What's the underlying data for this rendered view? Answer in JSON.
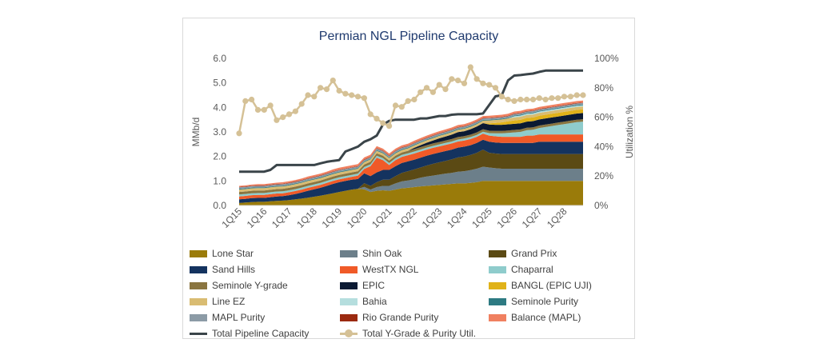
{
  "chart_data": {
    "type": "area",
    "title": "Permian NGL Pipeline Capacity",
    "ylabel": "MMb/d",
    "y2label": "Utilization %",
    "ylim": [
      0,
      6
    ],
    "y2lim": [
      0,
      1
    ],
    "yticks": [
      "0.0",
      "1.0",
      "2.0",
      "3.0",
      "4.0",
      "5.0",
      "6.0"
    ],
    "y2ticks": [
      "0%",
      "20%",
      "40%",
      "60%",
      "80%",
      "100%"
    ],
    "x_labels": [
      "1Q15",
      "1Q16",
      "1Q17",
      "1Q18",
      "1Q19",
      "1Q20",
      "1Q21",
      "1Q22",
      "1Q23",
      "1Q24",
      "1Q25",
      "1Q26",
      "1Q27",
      "1Q28"
    ],
    "x_quarters": [
      "1Q15",
      "2Q15",
      "3Q15",
      "4Q15",
      "1Q16",
      "2Q16",
      "3Q16",
      "4Q16",
      "1Q17",
      "2Q17",
      "3Q17",
      "4Q17",
      "1Q18",
      "2Q18",
      "3Q18",
      "4Q18",
      "1Q19",
      "2Q19",
      "3Q19",
      "4Q19",
      "1Q20",
      "2Q20",
      "3Q20",
      "4Q20",
      "1Q21",
      "2Q21",
      "3Q21",
      "4Q21",
      "1Q22",
      "2Q22",
      "3Q22",
      "4Q22",
      "1Q23",
      "2Q23",
      "3Q23",
      "4Q23",
      "1Q24",
      "2Q24",
      "3Q24",
      "4Q24",
      "1Q25",
      "2Q25",
      "3Q25",
      "4Q25",
      "1Q26",
      "2Q26",
      "3Q26",
      "4Q26",
      "1Q27",
      "2Q27",
      "3Q27",
      "4Q27",
      "1Q28",
      "2Q28",
      "3Q28",
      "4Q28"
    ],
    "stack_series": [
      {
        "name": "Lone Star",
        "color": "#9a7b0a",
        "values": [
          0.1,
          0.12,
          0.14,
          0.15,
          0.15,
          0.17,
          0.19,
          0.2,
          0.22,
          0.25,
          0.28,
          0.32,
          0.36,
          0.4,
          0.45,
          0.5,
          0.55,
          0.6,
          0.65,
          0.68,
          0.66,
          0.55,
          0.6,
          0.62,
          0.6,
          0.65,
          0.7,
          0.72,
          0.75,
          0.78,
          0.8,
          0.82,
          0.84,
          0.86,
          0.88,
          0.9,
          0.9,
          0.92,
          0.95,
          1.0,
          1.0,
          1.0,
          1.0,
          1.0,
          1.0,
          1.0,
          1.0,
          1.0,
          1.0,
          1.0,
          1.0,
          1.0,
          1.0,
          1.0,
          1.0,
          1.0
        ]
      },
      {
        "name": "Shin Oak",
        "color": "#6c7f8a",
        "values": [
          0,
          0,
          0,
          0,
          0,
          0,
          0,
          0,
          0,
          0,
          0,
          0,
          0,
          0,
          0,
          0,
          0,
          0,
          0,
          0,
          0.1,
          0.1,
          0.15,
          0.18,
          0.2,
          0.25,
          0.28,
          0.3,
          0.32,
          0.35,
          0.38,
          0.4,
          0.42,
          0.44,
          0.45,
          0.48,
          0.5,
          0.52,
          0.55,
          0.58,
          0.55,
          0.52,
          0.5,
          0.5,
          0.5,
          0.5,
          0.5,
          0.5,
          0.5,
          0.5,
          0.5,
          0.5,
          0.5,
          0.5,
          0.5,
          0.5
        ]
      },
      {
        "name": "Grand Prix",
        "color": "#5b4a14",
        "values": [
          0,
          0,
          0,
          0,
          0,
          0,
          0,
          0,
          0,
          0,
          0,
          0,
          0,
          0,
          0,
          0,
          0,
          0,
          0,
          0,
          0.15,
          0.15,
          0.2,
          0.25,
          0.25,
          0.3,
          0.35,
          0.38,
          0.4,
          0.42,
          0.45,
          0.48,
          0.5,
          0.52,
          0.55,
          0.58,
          0.6,
          0.62,
          0.65,
          0.7,
          0.6,
          0.6,
          0.6,
          0.6,
          0.6,
          0.6,
          0.6,
          0.6,
          0.6,
          0.6,
          0.6,
          0.6,
          0.6,
          0.6,
          0.6,
          0.6
        ]
      },
      {
        "name": "Sand Hills",
        "color": "#14335f",
        "values": [
          0.15,
          0.15,
          0.16,
          0.16,
          0.16,
          0.17,
          0.18,
          0.18,
          0.2,
          0.22,
          0.25,
          0.28,
          0.3,
          0.32,
          0.35,
          0.38,
          0.4,
          0.4,
          0.4,
          0.4,
          0.4,
          0.4,
          0.4,
          0.4,
          0.4,
          0.4,
          0.4,
          0.4,
          0.4,
          0.4,
          0.4,
          0.4,
          0.4,
          0.4,
          0.4,
          0.4,
          0.4,
          0.4,
          0.4,
          0.4,
          0.45,
          0.45,
          0.45,
          0.45,
          0.45,
          0.45,
          0.45,
          0.45,
          0.5,
          0.5,
          0.5,
          0.5,
          0.5,
          0.5,
          0.5,
          0.5
        ]
      },
      {
        "name": "WestTX NGL",
        "color": "#f05a28",
        "values": [
          0.12,
          0.12,
          0.12,
          0.12,
          0.12,
          0.12,
          0.12,
          0.12,
          0.12,
          0.12,
          0.12,
          0.12,
          0.12,
          0.12,
          0.12,
          0.12,
          0.12,
          0.12,
          0.12,
          0.14,
          0.18,
          0.4,
          0.6,
          0.4,
          0.2,
          0.25,
          0.25,
          0.25,
          0.25,
          0.25,
          0.25,
          0.25,
          0.25,
          0.25,
          0.25,
          0.25,
          0.25,
          0.25,
          0.25,
          0.25,
          0.25,
          0.25,
          0.25,
          0.25,
          0.25,
          0.25,
          0.3,
          0.3,
          0.3,
          0.3,
          0.3,
          0.3,
          0.3,
          0.3,
          0.3,
          0.3
        ]
      },
      {
        "name": "Chaparral",
        "color": "#8fcccc",
        "values": [
          0.08,
          0.08,
          0.08,
          0.08,
          0.08,
          0.08,
          0.08,
          0.08,
          0.08,
          0.08,
          0.08,
          0.08,
          0.08,
          0.08,
          0.08,
          0.08,
          0.08,
          0.08,
          0.08,
          0.08,
          0.08,
          0.08,
          0.08,
          0.08,
          0.08,
          0.08,
          0.08,
          0.08,
          0.08,
          0.08,
          0.08,
          0.08,
          0.08,
          0.08,
          0.08,
          0.08,
          0.08,
          0.08,
          0.08,
          0.08,
          0.1,
          0.12,
          0.14,
          0.16,
          0.18,
          0.2,
          0.22,
          0.24,
          0.26,
          0.3,
          0.34,
          0.38,
          0.42,
          0.46,
          0.5,
          0.52
        ]
      },
      {
        "name": "Seminole Y-grade",
        "color": "#8a7540",
        "values": [
          0.1,
          0.1,
          0.1,
          0.1,
          0.1,
          0.1,
          0.1,
          0.1,
          0.1,
          0.1,
          0.1,
          0.1,
          0.1,
          0.1,
          0.1,
          0.1,
          0.1,
          0.1,
          0.1,
          0.1,
          0.1,
          0.1,
          0.1,
          0.1,
          0.1,
          0.1,
          0.1,
          0.1,
          0.1,
          0.1,
          0.1,
          0.1,
          0.1,
          0.1,
          0.1,
          0.1,
          0.1,
          0.1,
          0.1,
          0.1,
          0.1,
          0.1,
          0.1,
          0.1,
          0.1,
          0.1,
          0.1,
          0.1,
          0.1,
          0.1,
          0.1,
          0.1,
          0.1,
          0.1,
          0.1,
          0.1
        ]
      },
      {
        "name": "EPIC",
        "color": "#0b1a33",
        "values": [
          0,
          0,
          0,
          0,
          0,
          0,
          0,
          0,
          0,
          0,
          0,
          0,
          0,
          0,
          0,
          0,
          0,
          0,
          0,
          0,
          0,
          0,
          0,
          0,
          0,
          0,
          0,
          0,
          0.05,
          0.08,
          0.1,
          0.12,
          0.15,
          0.16,
          0.18,
          0.2,
          0.2,
          0.22,
          0.24,
          0.25,
          0.25,
          0.25,
          0.25,
          0.25,
          0.25,
          0.25,
          0.25,
          0.25,
          0.25,
          0.25,
          0.25,
          0.25,
          0.25,
          0.25,
          0.25,
          0.25
        ]
      },
      {
        "name": "BANGL (EPIC UJI)",
        "color": "#e0b219",
        "values": [
          0,
          0,
          0,
          0,
          0,
          0,
          0,
          0,
          0,
          0,
          0,
          0,
          0,
          0,
          0,
          0,
          0,
          0,
          0,
          0,
          0,
          0,
          0,
          0,
          0,
          0,
          0,
          0,
          0,
          0,
          0,
          0,
          0,
          0,
          0,
          0,
          0,
          0,
          0,
          0,
          0.05,
          0.08,
          0.1,
          0.12,
          0.14,
          0.15,
          0.15,
          0.15,
          0.15,
          0.15,
          0.15,
          0.15,
          0.15,
          0.15,
          0.15,
          0.15
        ]
      },
      {
        "name": "Line EZ",
        "color": "#d9bc72",
        "values": [
          0.1,
          0.1,
          0.1,
          0.1,
          0.1,
          0.1,
          0.1,
          0.1,
          0.1,
          0.1,
          0.1,
          0.1,
          0.1,
          0.1,
          0.1,
          0.1,
          0.1,
          0.1,
          0.1,
          0.1,
          0.1,
          0.1,
          0.1,
          0.1,
          0.1,
          0.1,
          0.1,
          0.1,
          0.1,
          0.1,
          0.1,
          0.1,
          0.1,
          0.1,
          0.1,
          0.1,
          0.1,
          0.1,
          0.1,
          0.1,
          0.12,
          0.12,
          0.12,
          0.12,
          0.12,
          0.12,
          0.12,
          0.12,
          0.12,
          0.12,
          0.12,
          0.12,
          0.12,
          0.12,
          0.12,
          0.12
        ]
      },
      {
        "name": "Bahia",
        "color": "#b5dede",
        "values": [
          0,
          0,
          0,
          0,
          0,
          0,
          0,
          0,
          0,
          0,
          0,
          0,
          0,
          0,
          0,
          0,
          0,
          0,
          0,
          0,
          0,
          0,
          0,
          0,
          0,
          0,
          0,
          0,
          0,
          0,
          0,
          0,
          0,
          0,
          0,
          0,
          0,
          0,
          0,
          0,
          0,
          0,
          0,
          0,
          0.05,
          0.05,
          0.05,
          0.05,
          0.05,
          0.05,
          0.05,
          0.05,
          0.05,
          0.05,
          0.05,
          0.05
        ]
      },
      {
        "name": "Seminole Purity",
        "color": "#2d7a82",
        "values": [
          0.03,
          0.03,
          0.03,
          0.03,
          0.03,
          0.03,
          0.03,
          0.03,
          0.03,
          0.03,
          0.03,
          0.03,
          0.03,
          0.03,
          0.03,
          0.03,
          0.03,
          0.03,
          0.03,
          0.03,
          0.03,
          0.03,
          0.03,
          0.03,
          0.03,
          0.03,
          0.03,
          0.03,
          0.03,
          0.03,
          0.03,
          0.03,
          0.03,
          0.03,
          0.03,
          0.03,
          0.03,
          0.03,
          0.03,
          0.03,
          0.03,
          0.03,
          0.03,
          0.03,
          0.03,
          0.03,
          0.03,
          0.03,
          0.03,
          0.03,
          0.03,
          0.03,
          0.03,
          0.03,
          0.03,
          0.03
        ]
      },
      {
        "name": "MAPL Purity",
        "color": "#8c9ba6",
        "values": [
          0.06,
          0.06,
          0.06,
          0.06,
          0.06,
          0.06,
          0.06,
          0.06,
          0.06,
          0.06,
          0.06,
          0.06,
          0.06,
          0.06,
          0.06,
          0.06,
          0.06,
          0.06,
          0.06,
          0.06,
          0.06,
          0.06,
          0.06,
          0.06,
          0.06,
          0.06,
          0.06,
          0.06,
          0.06,
          0.06,
          0.06,
          0.06,
          0.06,
          0.06,
          0.06,
          0.06,
          0.06,
          0.06,
          0.06,
          0.06,
          0.06,
          0.06,
          0.06,
          0.06,
          0.06,
          0.06,
          0.06,
          0.06,
          0.06,
          0.06,
          0.06,
          0.06,
          0.06,
          0.06,
          0.06,
          0.06
        ]
      },
      {
        "name": "Rio Grande Purity",
        "color": "#9b2a10",
        "values": [
          0.02,
          0.02,
          0.02,
          0.02,
          0.02,
          0.02,
          0.02,
          0.02,
          0.02,
          0.02,
          0.02,
          0.02,
          0.02,
          0.02,
          0.02,
          0.02,
          0.02,
          0.02,
          0.02,
          0.02,
          0.02,
          0.02,
          0.02,
          0.02,
          0.02,
          0.02,
          0.02,
          0.02,
          0.02,
          0.02,
          0.02,
          0.02,
          0.02,
          0.02,
          0.02,
          0.02,
          0.02,
          0.02,
          0.02,
          0.02,
          0.02,
          0.02,
          0.02,
          0.02,
          0.02,
          0.02,
          0.02,
          0.02,
          0.02,
          0.02,
          0.02,
          0.02,
          0.02,
          0.02,
          0.02,
          0.02
        ]
      },
      {
        "name": "Balance (MAPL)",
        "color": "#f08060",
        "values": [
          0.04,
          0.04,
          0.04,
          0.05,
          0.05,
          0.05,
          0.05,
          0.06,
          0.06,
          0.06,
          0.06,
          0.07,
          0.07,
          0.07,
          0.07,
          0.08,
          0.08,
          0.08,
          0.08,
          0.08,
          0.08,
          0.08,
          0.08,
          0.08,
          0.08,
          0.08,
          0.08,
          0.08,
          0.08,
          0.08,
          0.08,
          0.08,
          0.08,
          0.08,
          0.08,
          0.08,
          0.08,
          0.08,
          0.08,
          0.08,
          0.08,
          0.08,
          0.08,
          0.08,
          0.08,
          0.08,
          0.08,
          0.08,
          0.08,
          0.08,
          0.08,
          0.08,
          0.08,
          0.08,
          0.08,
          0.08
        ]
      }
    ],
    "line_series": [
      {
        "name": "Total Pipeline Capacity",
        "color": "#3a4449",
        "axis": "left",
        "values": [
          1.38,
          1.38,
          1.38,
          1.38,
          1.38,
          1.45,
          1.65,
          1.65,
          1.65,
          1.65,
          1.65,
          1.65,
          1.65,
          1.72,
          1.78,
          1.82,
          1.85,
          2.2,
          2.3,
          2.4,
          2.6,
          2.7,
          2.85,
          3.3,
          3.45,
          3.5,
          3.5,
          3.5,
          3.5,
          3.55,
          3.55,
          3.6,
          3.65,
          3.65,
          3.7,
          3.72,
          3.72,
          3.72,
          3.72,
          3.75,
          4.1,
          4.45,
          4.5,
          5.1,
          5.3,
          5.32,
          5.35,
          5.38,
          5.45,
          5.5,
          5.5,
          5.5,
          5.5,
          5.5,
          5.5,
          5.5
        ]
      },
      {
        "name": "Total Y-Grade & Purity Util.",
        "color": "#d5c196",
        "axis": "right",
        "values": [
          0.49,
          0.71,
          0.72,
          0.65,
          0.65,
          0.68,
          0.58,
          0.6,
          0.62,
          0.64,
          0.69,
          0.75,
          0.74,
          0.8,
          0.79,
          0.85,
          0.78,
          0.76,
          0.75,
          0.74,
          0.73,
          0.62,
          0.59,
          0.56,
          0.54,
          0.68,
          0.67,
          0.71,
          0.72,
          0.77,
          0.8,
          0.77,
          0.82,
          0.79,
          0.86,
          0.85,
          0.83,
          0.94,
          0.86,
          0.83,
          0.82,
          0.8,
          0.74,
          0.72,
          0.71,
          0.72,
          0.72,
          0.72,
          0.73,
          0.72,
          0.73,
          0.73,
          0.74,
          0.74,
          0.75,
          0.75
        ]
      }
    ],
    "legend_position": "bottom"
  }
}
